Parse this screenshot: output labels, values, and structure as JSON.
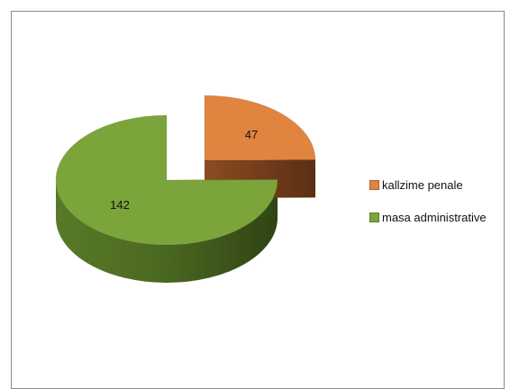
{
  "chart_data": {
    "type": "pie",
    "style": "3d-exploded",
    "categories": [
      "kallzime penale",
      "masa administrative"
    ],
    "values": [
      47,
      142
    ],
    "colors": [
      "#E0843F",
      "#7BA43A"
    ],
    "legend_position": "right"
  }
}
